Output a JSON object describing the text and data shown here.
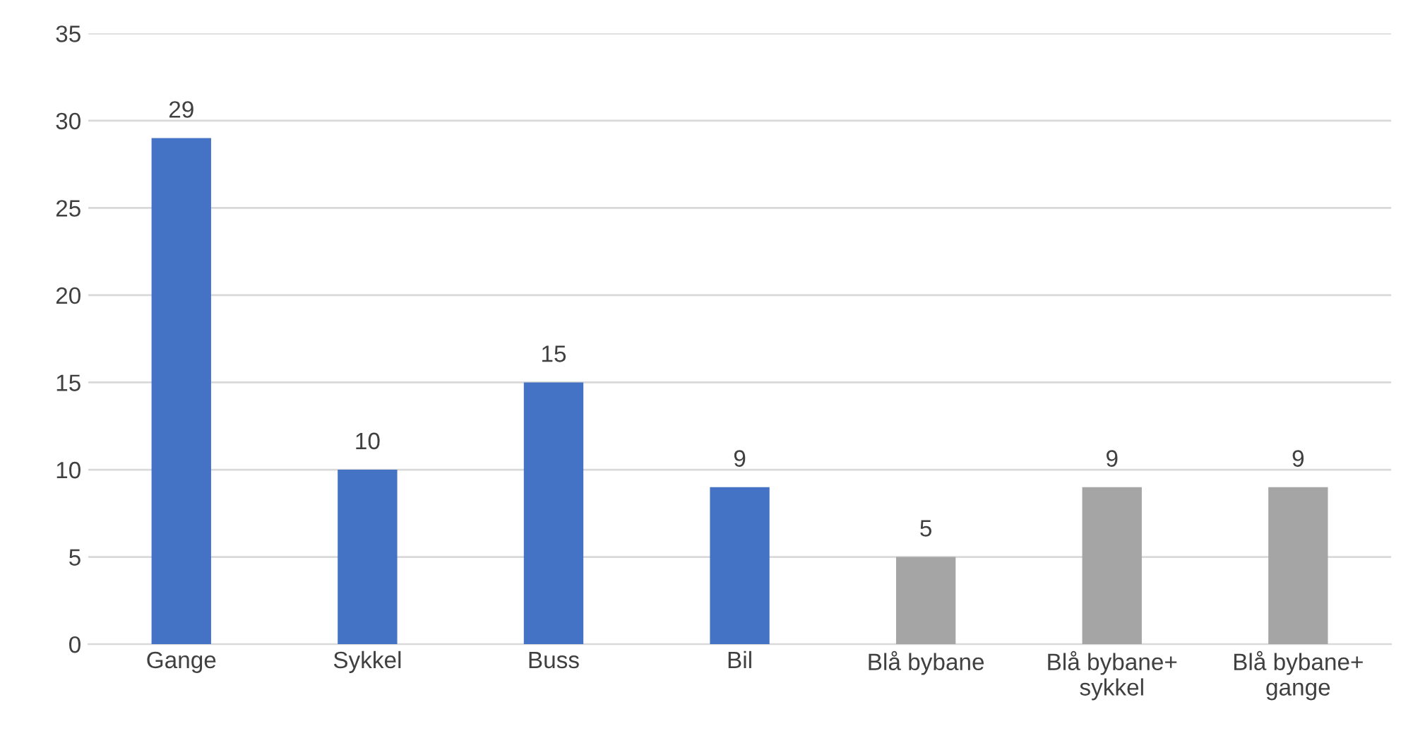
{
  "chart_data": {
    "type": "bar",
    "categories": [
      "Gange",
      "Sykkel",
      "Buss",
      "Bil",
      "Blå bybane",
      "Blå bybane+\nsykkel",
      "Blå bybane+\ngange"
    ],
    "values": [
      29,
      10,
      15,
      9,
      5,
      9,
      9
    ],
    "colors": [
      "#4472c4",
      "#4472c4",
      "#4472c4",
      "#4472c4",
      "#a5a5a5",
      "#a5a5a5",
      "#a5a5a5"
    ],
    "ylim": [
      0,
      35
    ],
    "yticks": [
      0,
      5,
      10,
      15,
      20,
      25,
      30,
      35
    ],
    "grid": "y",
    "data_labels": true
  }
}
